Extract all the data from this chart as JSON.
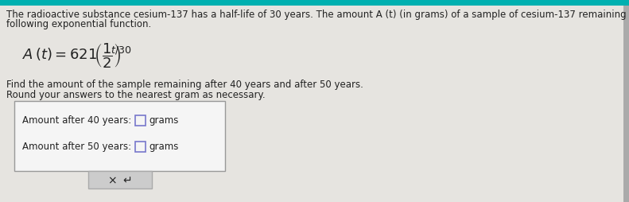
{
  "bg_color": "#e6e4e0",
  "top_text_line1": "The radioactive substance cesium-137 has a half-life of 30 years. The amount A (t) (in grams) of a sample of cesium-137 remaining after t years is given by the",
  "top_text_line2": "following exponential function.",
  "find_text_line1": "Find the amount of the sample remaining after 40 years and after 50 years.",
  "find_text_line2": "Round your answers to the nearest gram as necessary.",
  "label_40": "Amount after 40 years:",
  "label_50": "Amount after 50 years:",
  "unit": "grams",
  "box_color": "#f5f5f5",
  "box_border_color": "#999999",
  "input_border_color": "#7777cc",
  "text_color": "#222222",
  "teal_color": "#00b0b0",
  "right_strip_color": "#888888",
  "btn_bg": "#cccccc",
  "btn_border": "#aaaaaa",
  "font_size_body": 8.5,
  "font_size_label": 8.5
}
